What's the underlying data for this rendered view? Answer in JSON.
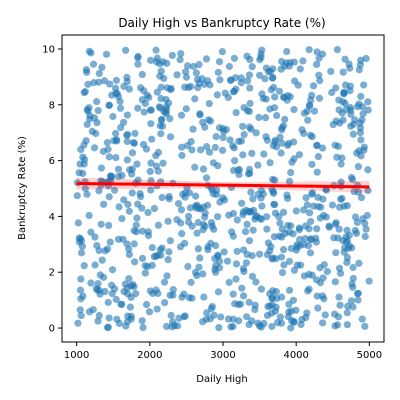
{
  "chart_data": {
    "type": "scatter",
    "title": "Daily High vs Bankruptcy Rate (%)",
    "xlabel": "Daily High",
    "ylabel": "Bankruptcy Rate (%)",
    "xlim": [
      1000,
      5000
    ],
    "ylim": [
      0,
      10
    ],
    "xticks": [
      1000,
      2000,
      3000,
      4000,
      5000
    ],
    "yticks": [
      0,
      2,
      4,
      6,
      8,
      10
    ],
    "grid": false,
    "n_points": 900,
    "point_color": "#1f77b4",
    "point_alpha": 0.6,
    "trend_line": {
      "color": "#ff0000",
      "band_color": "#ff0000",
      "x": [
        1000,
        5000
      ],
      "y": [
        5.18,
        5.06
      ]
    }
  }
}
